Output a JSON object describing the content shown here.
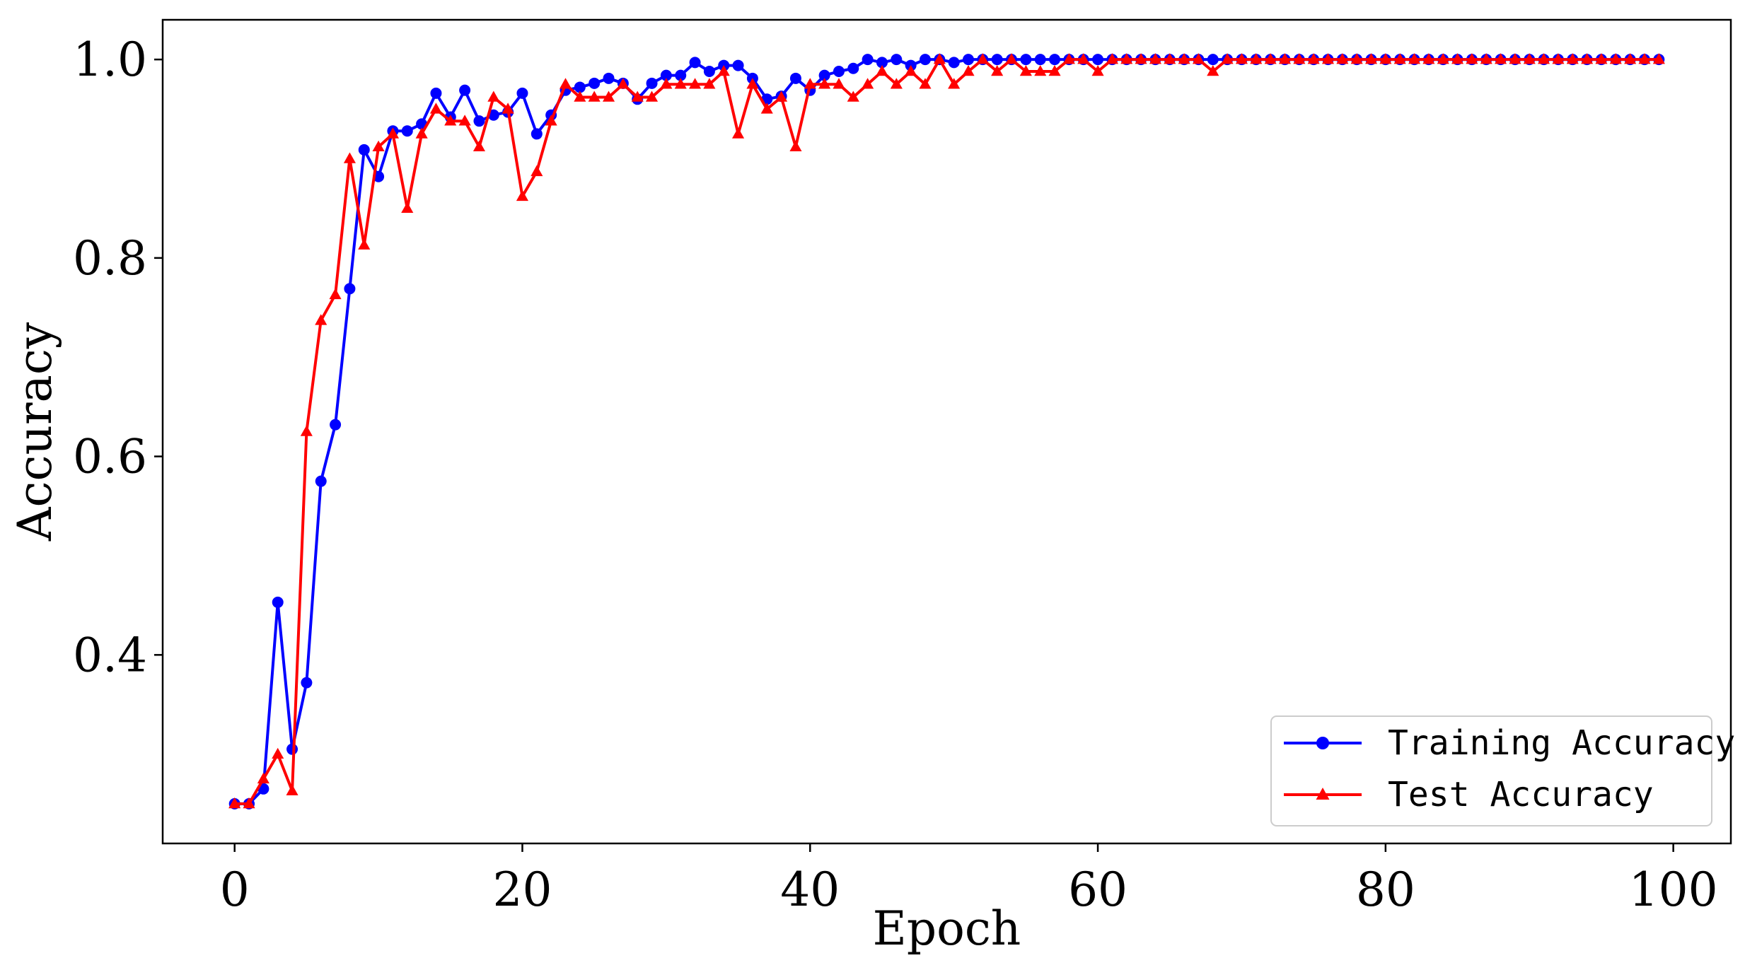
{
  "chart_data": {
    "type": "line",
    "xlabel": "Epoch",
    "ylabel": "Accuracy",
    "xlim": [
      -5,
      104
    ],
    "ylim": [
      0.21,
      1.04
    ],
    "xticks": [
      0,
      20,
      40,
      60,
      80,
      100
    ],
    "xtick_labels": [
      "0",
      "20",
      "40",
      "60",
      "80",
      "100"
    ],
    "yticks": [
      0.4,
      0.6,
      0.8,
      1.0
    ],
    "ytick_labels": [
      "0.4",
      "0.6",
      "0.8",
      "1.0"
    ],
    "grid": false,
    "legend_position": "bottom-right",
    "x": [
      0,
      1,
      2,
      3,
      4,
      5,
      6,
      7,
      8,
      9,
      10,
      11,
      12,
      13,
      14,
      15,
      16,
      17,
      18,
      19,
      20,
      21,
      22,
      23,
      24,
      25,
      26,
      27,
      28,
      29,
      30,
      31,
      32,
      33,
      34,
      35,
      36,
      37,
      38,
      39,
      40,
      41,
      42,
      43,
      44,
      45,
      46,
      47,
      48,
      49,
      50,
      51,
      52,
      53,
      54,
      55,
      56,
      57,
      58,
      59,
      60,
      61,
      62,
      63,
      64,
      65,
      66,
      67,
      68,
      69,
      70,
      71,
      72,
      73,
      74,
      75,
      76,
      77,
      78,
      79,
      80,
      81,
      82,
      83,
      84,
      85,
      86,
      87,
      88,
      89,
      90,
      91,
      92,
      93,
      94,
      95,
      96,
      97,
      98,
      99
    ],
    "series": [
      {
        "name": "Training Accuracy",
        "color": "#0000ff",
        "marker": "circle",
        "values": [
          0.25,
          0.25,
          0.265,
          0.453,
          0.305,
          0.372,
          0.575,
          0.632,
          0.769,
          0.909,
          0.882,
          0.928,
          0.928,
          0.935,
          0.966,
          0.942,
          0.969,
          0.938,
          0.944,
          0.947,
          0.966,
          0.925,
          0.944,
          0.969,
          0.972,
          0.976,
          0.981,
          0.976,
          0.96,
          0.976,
          0.984,
          0.984,
          0.997,
          0.988,
          0.994,
          0.994,
          0.981,
          0.96,
          0.963,
          0.981,
          0.969,
          0.984,
          0.988,
          0.991,
          1.0,
          0.997,
          1.0,
          0.994,
          1.0,
          1.0,
          0.997,
          1.0,
          1.0,
          1.0,
          1.0,
          1.0,
          1.0,
          1.0,
          1.0,
          1.0,
          1.0,
          1.0,
          1.0,
          1.0,
          1.0,
          1.0,
          1.0,
          1.0,
          1.0,
          1.0,
          1.0,
          1.0,
          1.0,
          1.0,
          1.0,
          1.0,
          1.0,
          1.0,
          1.0,
          1.0,
          1.0,
          1.0,
          1.0,
          1.0,
          1.0,
          1.0,
          1.0,
          1.0,
          1.0,
          1.0,
          1.0,
          1.0,
          1.0,
          1.0,
          1.0,
          1.0,
          1.0,
          1.0,
          1.0,
          1.0
        ]
      },
      {
        "name": "Test Accuracy",
        "color": "#ff0000",
        "marker": "triangle",
        "values": [
          0.25,
          0.25,
          0.275,
          0.3,
          0.263,
          0.625,
          0.737,
          0.763,
          0.9,
          0.813,
          0.912,
          0.925,
          0.85,
          0.925,
          0.95,
          0.938,
          0.938,
          0.912,
          0.962,
          0.95,
          0.862,
          0.887,
          0.938,
          0.975,
          0.962,
          0.962,
          0.962,
          0.975,
          0.962,
          0.962,
          0.975,
          0.975,
          0.975,
          0.975,
          0.988,
          0.925,
          0.975,
          0.95,
          0.962,
          0.912,
          0.975,
          0.975,
          0.975,
          0.962,
          0.975,
          0.988,
          0.975,
          0.988,
          0.975,
          1.0,
          0.975,
          0.988,
          1.0,
          0.988,
          1.0,
          0.988,
          0.988,
          0.988,
          1.0,
          1.0,
          0.988,
          1.0,
          1.0,
          1.0,
          1.0,
          1.0,
          1.0,
          1.0,
          0.988,
          1.0,
          1.0,
          1.0,
          1.0,
          1.0,
          1.0,
          1.0,
          1.0,
          1.0,
          1.0,
          1.0,
          1.0,
          1.0,
          1.0,
          1.0,
          1.0,
          1.0,
          1.0,
          1.0,
          1.0,
          1.0,
          1.0,
          1.0,
          1.0,
          1.0,
          1.0,
          1.0,
          1.0,
          1.0,
          1.0,
          1.0
        ]
      }
    ]
  }
}
